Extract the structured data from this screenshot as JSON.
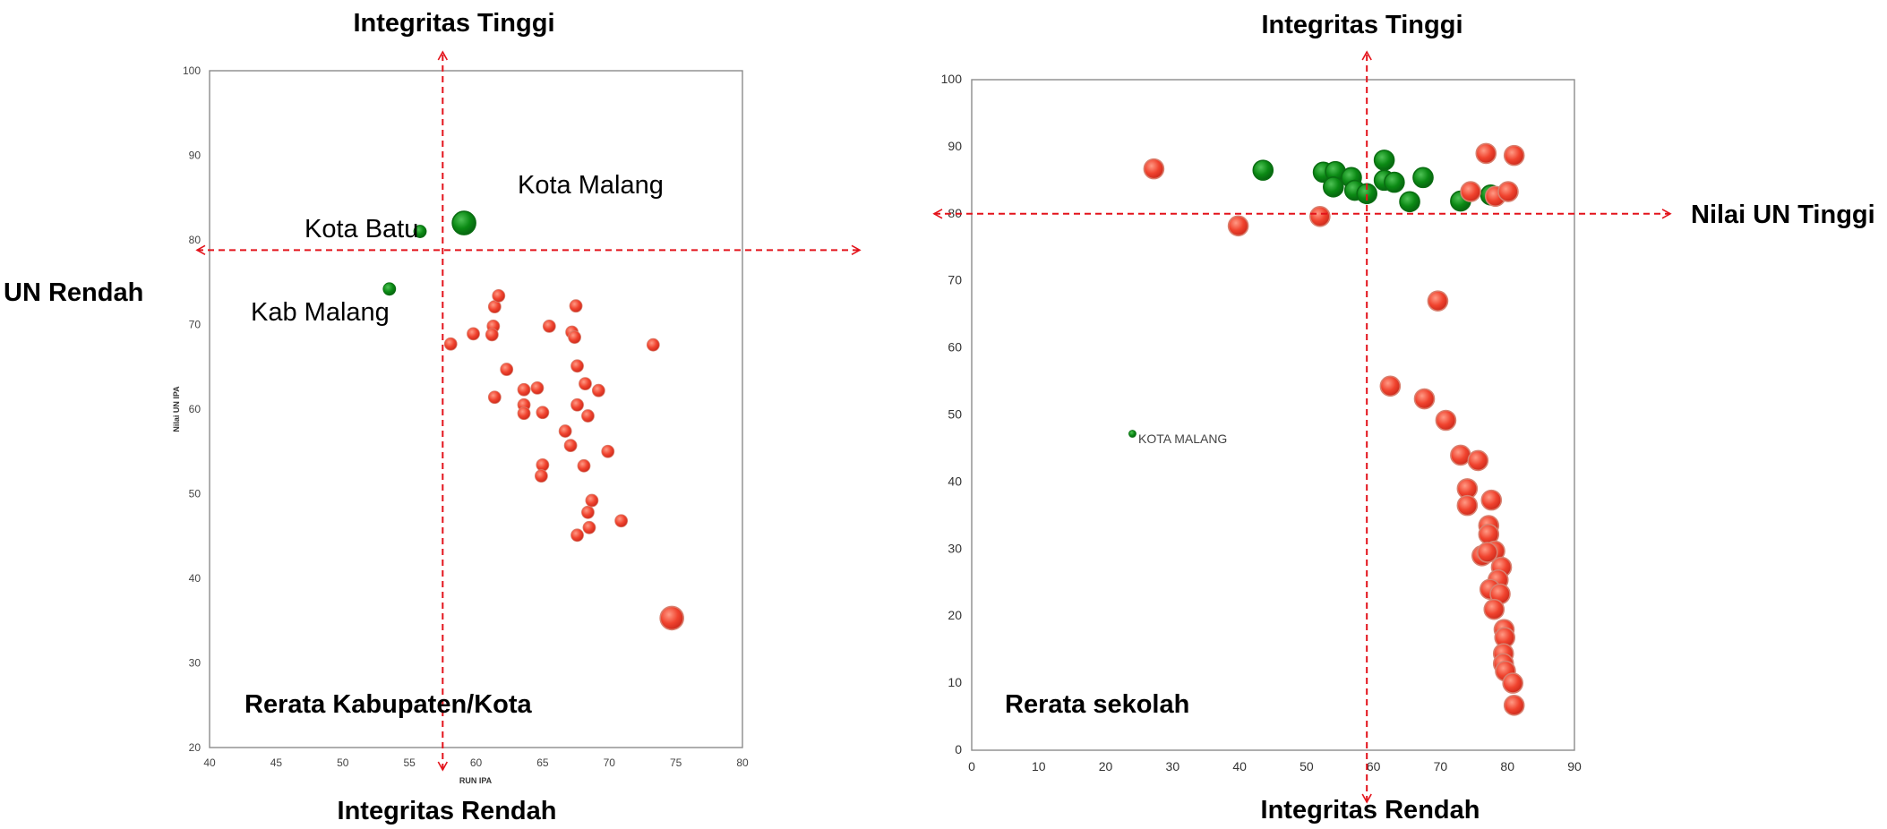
{
  "colors": {
    "green": "#0b8a14",
    "red": "#f0432e",
    "guide": "#e3131b",
    "frame": "#8c8c8c"
  },
  "chart_data": [
    {
      "type": "scatter",
      "title": "",
      "panel_label": "Rerata Kabupaten/Kota",
      "xlabel": "RUN IPA",
      "ylabel": "Nilai UN IPA",
      "xlim": [
        40,
        80
      ],
      "ylim": [
        20,
        100
      ],
      "xticks": [
        "40",
        "45",
        "50",
        "55",
        "60",
        "65",
        "70",
        "75",
        "80"
      ],
      "yticks": [
        "20",
        "30",
        "40",
        "50",
        "60",
        "70",
        "80",
        "90",
        "100"
      ],
      "grid": false,
      "guide_x": 57.5,
      "guide_y": 78.8,
      "labels": {
        "top": "Integritas Tinggi",
        "bottom": "Integritas Rendah",
        "left": "UN Rendah"
      },
      "annotations": [
        {
          "text": "Kota Malang",
          "x": 63,
          "y": 85.5
        },
        {
          "text": "Kota Batu",
          "x": 47,
          "y": 81
        },
        {
          "text": "Kab Malang",
          "x": 43,
          "y": 73
        }
      ],
      "series": [
        {
          "color": "green",
          "points": [
            [
              59.1,
              82,
              13
            ],
            [
              55.8,
              81,
              7
            ],
            [
              53.5,
              74.2,
              7
            ]
          ]
        },
        {
          "color": "red",
          "points": [
            [
              58.1,
              67.7,
              7
            ],
            [
              59.8,
              68.9,
              7
            ],
            [
              61.3,
              69.8,
              7
            ],
            [
              61.2,
              68.8,
              7
            ],
            [
              61.4,
              72.1,
              7
            ],
            [
              61.7,
              73.4,
              7
            ],
            [
              65.5,
              69.8,
              7
            ],
            [
              67.5,
              72.2,
              7
            ],
            [
              67.2,
              69.1,
              7
            ],
            [
              67.4,
              68.5,
              7
            ],
            [
              73.3,
              67.6,
              7
            ],
            [
              62.3,
              64.7,
              7
            ],
            [
              61.4,
              61.4,
              7
            ],
            [
              63.6,
              62.3,
              7
            ],
            [
              64.6,
              62.5,
              7
            ],
            [
              63.6,
              60.5,
              7
            ],
            [
              63.6,
              59.5,
              7
            ],
            [
              65.0,
              59.6,
              7
            ],
            [
              67.6,
              65.1,
              7
            ],
            [
              68.2,
              63.0,
              7
            ],
            [
              69.2,
              62.2,
              7
            ],
            [
              67.6,
              60.5,
              7
            ],
            [
              68.4,
              59.2,
              7
            ],
            [
              66.7,
              57.4,
              7
            ],
            [
              67.1,
              55.7,
              7
            ],
            [
              69.9,
              55.0,
              7
            ],
            [
              65.0,
              53.4,
              7
            ],
            [
              64.9,
              52.1,
              7
            ],
            [
              68.1,
              53.3,
              7
            ],
            [
              68.7,
              49.2,
              7
            ],
            [
              68.4,
              47.8,
              7
            ],
            [
              68.5,
              46.0,
              7
            ],
            [
              67.6,
              45.1,
              7
            ],
            [
              70.9,
              46.8,
              7
            ],
            [
              74.7,
              35.3,
              13
            ]
          ]
        }
      ]
    },
    {
      "type": "scatter",
      "title": "",
      "panel_label": "Rerata sekolah",
      "xlabel": "",
      "ylabel": "",
      "xlim": [
        0,
        90
      ],
      "ylim": [
        0,
        100
      ],
      "xticks": [
        "0",
        "10",
        "20",
        "30",
        "40",
        "50",
        "60",
        "70",
        "80",
        "90"
      ],
      "yticks": [
        "0",
        "10",
        "20",
        "30",
        "40",
        "50",
        "60",
        "70",
        "80",
        "90",
        "100"
      ],
      "grid": false,
      "guide_x": 59,
      "guide_y": 80,
      "labels": {
        "top": "Integritas Tinggi",
        "bottom": "Integritas Rendah",
        "right": "Nilai UN Tinggi"
      },
      "annotations": [
        {
          "text": "KOTA MALANG",
          "x": 25,
          "y": 46.8
        }
      ],
      "series": [
        {
          "color": "green",
          "points": [
            [
              24,
              47.2,
              4
            ],
            [
              43.5,
              86.5,
              11
            ],
            [
              52.5,
              86.2,
              11
            ],
            [
              54.3,
              86.3,
              11
            ],
            [
              54.0,
              84.0,
              11
            ],
            [
              56.7,
              85.4,
              11
            ],
            [
              57.2,
              83.5,
              11
            ],
            [
              59.0,
              83.0,
              11
            ],
            [
              61.6,
              88.0,
              11
            ],
            [
              61.6,
              85.0,
              11
            ],
            [
              63.1,
              84.7,
              11
            ],
            [
              65.4,
              81.8,
              11
            ],
            [
              67.4,
              85.4,
              11
            ],
            [
              73.0,
              81.9,
              11
            ],
            [
              77.5,
              82.8,
              11
            ]
          ]
        },
        {
          "color": "red",
          "points": [
            [
              27.2,
              86.7,
              11
            ],
            [
              39.8,
              78.2,
              11
            ],
            [
              52.0,
              79.6,
              11
            ],
            [
              74.5,
              83.3,
              11
            ],
            [
              76.8,
              89.0,
              11
            ],
            [
              78.2,
              82.6,
              11
            ],
            [
              80.1,
              83.3,
              11
            ],
            [
              81.0,
              88.7,
              11
            ],
            [
              69.6,
              67.0,
              11
            ],
            [
              62.5,
              54.3,
              11
            ],
            [
              67.6,
              52.4,
              11
            ],
            [
              70.8,
              49.2,
              11
            ],
            [
              73.0,
              44.0,
              11
            ],
            [
              75.6,
              43.2,
              11
            ],
            [
              74.0,
              39.0,
              11
            ],
            [
              74.0,
              36.5,
              11
            ],
            [
              77.6,
              37.3,
              11
            ],
            [
              77.2,
              33.5,
              11
            ],
            [
              77.2,
              32.2,
              11
            ],
            [
              78.1,
              29.7,
              11
            ],
            [
              76.2,
              29.0,
              11
            ],
            [
              77.0,
              29.5,
              11
            ],
            [
              79.1,
              27.3,
              11
            ],
            [
              78.6,
              25.4,
              11
            ],
            [
              77.4,
              24.0,
              11
            ],
            [
              78.9,
              23.3,
              11
            ],
            [
              78.0,
              21.0,
              11
            ],
            [
              79.5,
              18.0,
              11
            ],
            [
              79.6,
              16.8,
              11
            ],
            [
              79.4,
              14.4,
              11
            ],
            [
              79.4,
              12.9,
              11
            ],
            [
              79.7,
              11.8,
              11
            ],
            [
              80.8,
              10.0,
              11
            ],
            [
              81.0,
              6.7,
              11
            ]
          ]
        }
      ]
    }
  ]
}
